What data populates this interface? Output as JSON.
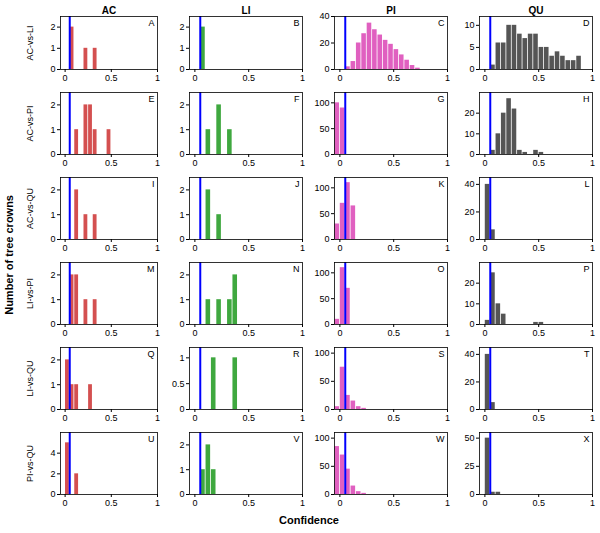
{
  "xlabel": "Confidence",
  "ylabel": "Number of tree crowns",
  "chart_data": [
    {
      "type": "histogram",
      "title": "AC",
      "ylabel": "AC-vs-LI",
      "annotations": [
        "A"
      ],
      "color": "#d45050",
      "bins": [
        0.05,
        0.1,
        0.15,
        0.2,
        0.25,
        0.3,
        0.35
      ],
      "values": [
        2,
        0,
        0,
        1,
        0,
        1
      ],
      "xlim": [
        -0.05,
        1.0
      ],
      "xticks": [
        0,
        0.5,
        1
      ],
      "ylim": [
        0,
        2.5
      ],
      "yticks": [
        0,
        1,
        2
      ],
      "vlines": [
        {
          "x": 0.05,
          "color": "blue"
        }
      ]
    },
    {
      "type": "histogram",
      "title": "LI",
      "annotations": [
        "B"
      ],
      "color": "#3fa83f",
      "bins": [
        0.05,
        0.1
      ],
      "values": [
        2
      ],
      "xlim": [
        -0.05,
        1.0
      ],
      "xticks": [
        0,
        0.5,
        1
      ],
      "ylim": [
        0,
        2.5
      ],
      "yticks": [
        0,
        1,
        2
      ],
      "vlines": [
        {
          "x": 0.05,
          "color": "blue"
        }
      ]
    },
    {
      "type": "histogram",
      "title": "PI",
      "annotations": [
        "C"
      ],
      "color": "#e060c0",
      "bins": [
        0.05,
        0.1,
        0.15,
        0.2,
        0.25,
        0.3,
        0.35,
        0.4,
        0.45,
        0.5,
        0.55,
        0.6,
        0.65,
        0.7,
        0.75
      ],
      "values": [
        2,
        6,
        20,
        27,
        35,
        30,
        26,
        22,
        19,
        15,
        11,
        7,
        3,
        1
      ],
      "xlim": [
        -0.05,
        1.0
      ],
      "xticks": [
        0,
        0.5,
        1
      ],
      "ylim": [
        0,
        40
      ],
      "yticks": [
        0,
        20,
        40
      ],
      "vlines": [
        {
          "x": 0.05,
          "color": "blue"
        }
      ]
    },
    {
      "type": "histogram",
      "title": "QU",
      "annotations": [
        "D"
      ],
      "color": "#555555",
      "bins": [
        0.05,
        0.1,
        0.15,
        0.2,
        0.25,
        0.3,
        0.35,
        0.4,
        0.45,
        0.5,
        0.55,
        0.6,
        0.65,
        0.7,
        0.75,
        0.8,
        0.85,
        0.9
      ],
      "values": [
        1,
        6,
        6,
        10,
        10,
        8,
        7,
        8,
        8,
        5,
        5,
        3,
        4,
        3,
        2,
        2,
        3
      ],
      "xlim": [
        -0.05,
        1.0
      ],
      "xticks": [
        0,
        0.5,
        1
      ],
      "ylim": [
        0,
        12
      ],
      "yticks": [
        0,
        5,
        10
      ],
      "vlines": [
        {
          "x": 0.05,
          "color": "blue"
        }
      ]
    },
    {
      "type": "histogram",
      "ylabel": "AC-vs-PI",
      "annotations": [
        "E"
      ],
      "color": "#d45050",
      "bins": [
        0.1,
        0.15,
        0.2,
        0.25,
        0.3,
        0.35,
        0.4,
        0.45,
        0.5
      ],
      "values": [
        1,
        0,
        2,
        2,
        1,
        0,
        0,
        1
      ],
      "xlim": [
        -0.05,
        1.0
      ],
      "xticks": [
        0,
        0.5,
        1
      ],
      "ylim": [
        0,
        2.5
      ],
      "yticks": [
        0,
        1,
        2
      ],
      "vlines": [
        {
          "x": 0.05,
          "color": "blue"
        }
      ]
    },
    {
      "type": "histogram",
      "annotations": [
        "F"
      ],
      "color": "#3fa83f",
      "bins": [
        0.1,
        0.15,
        0.2,
        0.25,
        0.3,
        0.35
      ],
      "values": [
        1,
        0,
        2,
        0,
        1
      ],
      "xlim": [
        -0.05,
        1.0
      ],
      "xticks": [
        0,
        0.5,
        1
      ],
      "ylim": [
        0,
        2.5
      ],
      "yticks": [
        0,
        1,
        2
      ],
      "vlines": [
        {
          "x": 0.05,
          "color": "blue"
        }
      ]
    },
    {
      "type": "histogram",
      "annotations": [
        "G"
      ],
      "color": "#e060c0",
      "bins": [
        -0.05,
        0.0,
        0.05
      ],
      "values": [
        100,
        90
      ],
      "xlim": [
        -0.05,
        1.0
      ],
      "xticks": [
        0,
        0.5,
        1
      ],
      "ylim": [
        0,
        120
      ],
      "yticks": [
        0,
        50,
        100
      ],
      "vlines": [
        {
          "x": 0.05,
          "color": "blue"
        }
      ]
    },
    {
      "type": "histogram",
      "annotations": [
        "H"
      ],
      "color": "#555555",
      "bins": [
        0.05,
        0.1,
        0.15,
        0.2,
        0.25,
        0.3,
        0.35,
        0.4,
        0.45,
        0.5,
        0.55
      ],
      "values": [
        2,
        10,
        20,
        27,
        22,
        2,
        1,
        0,
        2,
        1
      ],
      "xlim": [
        -0.05,
        1.0
      ],
      "xticks": [
        0,
        0.5,
        1
      ],
      "ylim": [
        0,
        30
      ],
      "yticks": [
        0,
        10,
        20
      ],
      "vlines": [
        {
          "x": 0.05,
          "color": "blue"
        }
      ]
    },
    {
      "type": "histogram",
      "ylabel": "AC-vs-QU",
      "annotations": [
        "I"
      ],
      "color": "#d45050",
      "bins": [
        0.1,
        0.15,
        0.2,
        0.25,
        0.3,
        0.35
      ],
      "values": [
        2,
        0,
        1,
        0,
        1
      ],
      "xlim": [
        -0.05,
        1.0
      ],
      "xticks": [
        0,
        0.5,
        1
      ],
      "ylim": [
        0,
        2.5
      ],
      "yticks": [
        0,
        1,
        2
      ],
      "vlines": [
        {
          "x": 0.05,
          "color": "blue"
        }
      ]
    },
    {
      "type": "histogram",
      "annotations": [
        "J"
      ],
      "color": "#3fa83f",
      "bins": [
        0.1,
        0.15,
        0.2,
        0.25
      ],
      "values": [
        2,
        0,
        1
      ],
      "xlim": [
        -0.05,
        1.0
      ],
      "xticks": [
        0,
        0.5,
        1
      ],
      "ylim": [
        0,
        2.5
      ],
      "yticks": [
        0,
        1,
        2
      ],
      "vlines": [
        {
          "x": 0.05,
          "color": "blue"
        }
      ]
    },
    {
      "type": "histogram",
      "annotations": [
        "K"
      ],
      "color": "#e060c0",
      "bins": [
        -0.05,
        0.0,
        0.05,
        0.1,
        0.15
      ],
      "values": [
        30,
        70,
        110,
        65
      ],
      "xlim": [
        -0.05,
        1.0
      ],
      "xticks": [
        0,
        0.5,
        1
      ],
      "ylim": [
        0,
        120
      ],
      "yticks": [
        0,
        50,
        100
      ],
      "vlines": [
        {
          "x": 0.05,
          "color": "blue"
        }
      ]
    },
    {
      "type": "histogram",
      "annotations": [
        "L"
      ],
      "color": "#555555",
      "bins": [
        0.0,
        0.05,
        0.1
      ],
      "values": [
        40,
        7
      ],
      "xlim": [
        -0.05,
        1.0
      ],
      "xticks": [
        0,
        0.5,
        1
      ],
      "ylim": [
        0,
        45
      ],
      "yticks": [
        0,
        20,
        40
      ],
      "vlines": [
        {
          "x": 0.05,
          "color": "blue"
        }
      ]
    },
    {
      "type": "histogram",
      "ylabel": "LI-vs-PI",
      "annotations": [
        "M"
      ],
      "color": "#d45050",
      "bins": [
        0.05,
        0.1,
        0.15,
        0.2,
        0.25,
        0.3,
        0.35
      ],
      "values": [
        2,
        2,
        0,
        1,
        0,
        1
      ],
      "xlim": [
        -0.05,
        1.0
      ],
      "xticks": [
        0,
        0.5,
        1
      ],
      "ylim": [
        0,
        2.5
      ],
      "yticks": [
        0,
        1,
        2
      ],
      "vlines": [
        {
          "x": 0.05,
          "color": "blue"
        }
      ]
    },
    {
      "type": "histogram",
      "annotations": [
        "N"
      ],
      "color": "#3fa83f",
      "bins": [
        0.1,
        0.15,
        0.2,
        0.25,
        0.3,
        0.35,
        0.4
      ],
      "values": [
        1,
        0,
        1,
        0,
        1,
        2
      ],
      "xlim": [
        -0.05,
        1.0
      ],
      "xticks": [
        0,
        0.5,
        1
      ],
      "ylim": [
        0,
        2.5
      ],
      "yticks": [
        0,
        1,
        2
      ],
      "vlines": [
        {
          "x": 0.05,
          "color": "blue"
        }
      ]
    },
    {
      "type": "histogram",
      "annotations": [
        "O"
      ],
      "color": "#e060c0",
      "bins": [
        -0.05,
        0.0,
        0.05,
        0.1
      ],
      "values": [
        10,
        110,
        70
      ],
      "xlim": [
        -0.05,
        1.0
      ],
      "xticks": [
        0,
        0.5,
        1
      ],
      "ylim": [
        0,
        120
      ],
      "yticks": [
        0,
        50,
        100
      ],
      "vlines": [
        {
          "x": 0.05,
          "color": "blue"
        }
      ]
    },
    {
      "type": "histogram",
      "annotations": [
        "P"
      ],
      "color": "#555555",
      "bins": [
        0.0,
        0.05,
        0.1,
        0.15,
        0.2,
        0.25,
        0.3,
        0.35,
        0.4,
        0.45,
        0.5,
        0.55
      ],
      "values": [
        2,
        25,
        10,
        5,
        0,
        0,
        0,
        0,
        0,
        1,
        1
      ],
      "xlim": [
        -0.05,
        1.0
      ],
      "xticks": [
        0,
        0.5,
        1
      ],
      "ylim": [
        0,
        30
      ],
      "yticks": [
        0,
        10,
        20
      ],
      "vlines": [
        {
          "x": 0.05,
          "color": "blue"
        }
      ]
    },
    {
      "type": "histogram",
      "ylabel": "LI-vs-QU",
      "annotations": [
        "Q"
      ],
      "color": "#d45050",
      "bins": [
        0.0,
        0.05,
        0.1,
        0.15,
        0.2,
        0.25,
        0.3
      ],
      "values": [
        2,
        1,
        1,
        0,
        0,
        1
      ],
      "xlim": [
        -0.05,
        1.0
      ],
      "xticks": [
        0,
        0.5,
        1
      ],
      "ylim": [
        0,
        2.5
      ],
      "yticks": [
        0,
        1,
        2
      ],
      "vlines": [
        {
          "x": 0.05,
          "color": "blue"
        }
      ]
    },
    {
      "type": "histogram",
      "annotations": [
        "R"
      ],
      "color": "#3fa83f",
      "bins": [
        0.15,
        0.2,
        0.25,
        0.3,
        0.35,
        0.4
      ],
      "values": [
        1,
        0,
        0,
        0,
        1
      ],
      "xlim": [
        -0.05,
        1.0
      ],
      "xticks": [
        0,
        0.5,
        1
      ],
      "ylim": [
        0,
        1.2
      ],
      "yticks": [
        0,
        0.5,
        1
      ],
      "vlines": [
        {
          "x": 0.05,
          "color": "blue"
        }
      ]
    },
    {
      "type": "histogram",
      "annotations": [
        "S"
      ],
      "color": "#e060c0",
      "bins": [
        -0.05,
        0.0,
        0.05,
        0.1,
        0.15,
        0.2,
        0.25
      ],
      "values": [
        5,
        75,
        25,
        15,
        5,
        2
      ],
      "xlim": [
        -0.05,
        1.0
      ],
      "xticks": [
        0,
        0.5,
        1
      ],
      "ylim": [
        0,
        110
      ],
      "yticks": [
        0,
        50,
        100
      ],
      "vlines": [
        {
          "x": 0.05,
          "color": "blue"
        }
      ]
    },
    {
      "type": "histogram",
      "annotations": [
        "T"
      ],
      "color": "#555555",
      "bins": [
        0.0,
        0.05,
        0.1
      ],
      "values": [
        40,
        5
      ],
      "xlim": [
        -0.05,
        1.0
      ],
      "xticks": [
        0,
        0.5,
        1
      ],
      "ylim": [
        0,
        45
      ],
      "yticks": [
        0,
        20,
        40
      ],
      "vlines": [
        {
          "x": 0.05,
          "color": "blue"
        }
      ]
    },
    {
      "type": "histogram",
      "ylabel": "PI-vs-QU",
      "annotations": [
        "U"
      ],
      "color": "#d45050",
      "bins": [
        0.0,
        0.05,
        0.1,
        0.15
      ],
      "values": [
        5,
        0,
        2
      ],
      "xlim": [
        -0.05,
        1.0
      ],
      "xticks": [
        0,
        0.5,
        1
      ],
      "ylim": [
        0,
        6
      ],
      "yticks": [
        0,
        2,
        4
      ],
      "vlines": [
        {
          "x": 0.05,
          "color": "blue"
        }
      ]
    },
    {
      "type": "histogram",
      "annotations": [
        "V"
      ],
      "color": "#3fa83f",
      "bins": [
        0.05,
        0.1,
        0.15,
        0.2
      ],
      "values": [
        1,
        2,
        1
      ],
      "xlim": [
        -0.05,
        1.0
      ],
      "xticks": [
        0,
        0.5,
        1
      ],
      "ylim": [
        0,
        2.5
      ],
      "yticks": [
        0,
        1,
        2
      ],
      "vlines": [
        {
          "x": 0.05,
          "color": "blue"
        }
      ]
    },
    {
      "type": "histogram",
      "annotations": [
        "W"
      ],
      "color": "#e060c0",
      "bins": [
        -0.05,
        0.0,
        0.05,
        0.1,
        0.15,
        0.2,
        0.25
      ],
      "values": [
        85,
        70,
        45,
        15,
        5,
        2
      ],
      "xlim": [
        -0.05,
        1.0
      ],
      "xticks": [
        0,
        0.5,
        1
      ],
      "ylim": [
        0,
        110
      ],
      "yticks": [
        0,
        50,
        100
      ],
      "vlines": [
        {
          "x": 0.05,
          "color": "blue"
        }
      ]
    },
    {
      "type": "histogram",
      "annotations": [
        "X"
      ],
      "color": "#555555",
      "bins": [
        0.0,
        0.05,
        0.1,
        0.15
      ],
      "values": [
        50,
        2,
        2
      ],
      "xlim": [
        -0.05,
        1.0
      ],
      "xticks": [
        0,
        0.5,
        1
      ],
      "ylim": [
        0,
        55
      ],
      "yticks": [
        0,
        25,
        50
      ],
      "vlines": [
        {
          "x": 0.05,
          "color": "blue"
        }
      ]
    }
  ]
}
